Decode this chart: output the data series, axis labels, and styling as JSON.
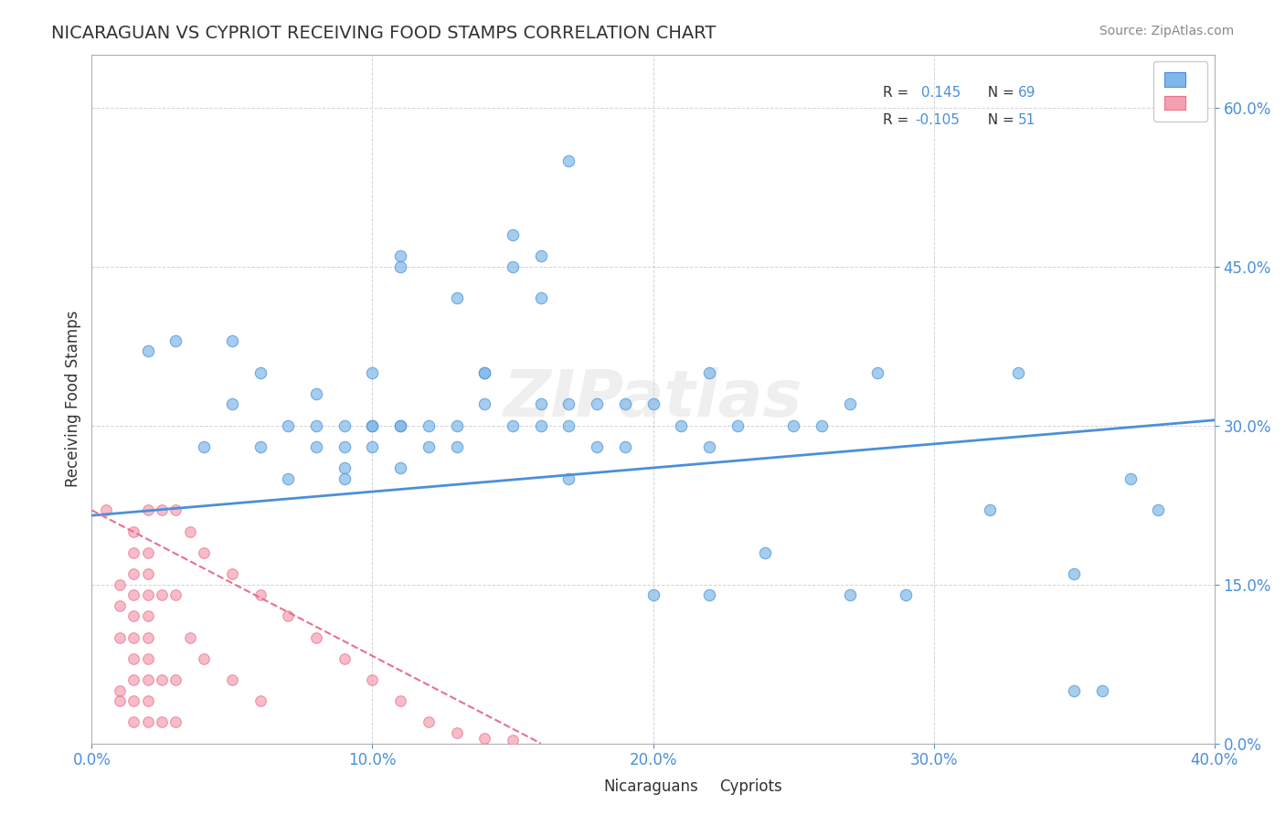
{
  "title": "NICARAGUAN VS CYPRIOT RECEIVING FOOD STAMPS CORRELATION CHART",
  "source": "Source: ZipAtlas.com",
  "xlabel_ticks": [
    "0.0%",
    "10.0%",
    "20.0%",
    "30.0%",
    "40.0%"
  ],
  "ylabel_ticks": [
    "0.0%",
    "15.0%",
    "30.0%",
    "45.0%",
    "60.0%"
  ],
  "xlim": [
    0.0,
    0.4
  ],
  "ylim": [
    0.0,
    0.65
  ],
  "watermark": "ZIPatlas",
  "legend_blue_r": "0.145",
  "legend_blue_n": "69",
  "legend_pink_r": "-0.105",
  "legend_pink_n": "51",
  "legend_label_blue": "Nicaraguans",
  "legend_label_pink": "Cypriots",
  "blue_color": "#7EB8E8",
  "pink_color": "#F4A0B0",
  "blue_line_color": "#4A90D9",
  "pink_line_color": "#E87090",
  "blue_scatter": [
    [
      0.02,
      0.37
    ],
    [
      0.03,
      0.38
    ],
    [
      0.04,
      0.28
    ],
    [
      0.05,
      0.32
    ],
    [
      0.05,
      0.38
    ],
    [
      0.06,
      0.35
    ],
    [
      0.06,
      0.28
    ],
    [
      0.07,
      0.3
    ],
    [
      0.07,
      0.25
    ],
    [
      0.08,
      0.3
    ],
    [
      0.08,
      0.28
    ],
    [
      0.08,
      0.33
    ],
    [
      0.09,
      0.28
    ],
    [
      0.09,
      0.26
    ],
    [
      0.09,
      0.3
    ],
    [
      0.09,
      0.25
    ],
    [
      0.1,
      0.3
    ],
    [
      0.1,
      0.28
    ],
    [
      0.1,
      0.35
    ],
    [
      0.1,
      0.3
    ],
    [
      0.11,
      0.3
    ],
    [
      0.11,
      0.26
    ],
    [
      0.11,
      0.3
    ],
    [
      0.11,
      0.45
    ],
    [
      0.11,
      0.46
    ],
    [
      0.12,
      0.3
    ],
    [
      0.12,
      0.28
    ],
    [
      0.13,
      0.42
    ],
    [
      0.13,
      0.28
    ],
    [
      0.13,
      0.3
    ],
    [
      0.14,
      0.35
    ],
    [
      0.14,
      0.32
    ],
    [
      0.14,
      0.35
    ],
    [
      0.15,
      0.48
    ],
    [
      0.15,
      0.45
    ],
    [
      0.15,
      0.3
    ],
    [
      0.16,
      0.46
    ],
    [
      0.16,
      0.42
    ],
    [
      0.16,
      0.3
    ],
    [
      0.16,
      0.32
    ],
    [
      0.17,
      0.32
    ],
    [
      0.17,
      0.3
    ],
    [
      0.17,
      0.25
    ],
    [
      0.17,
      0.55
    ],
    [
      0.18,
      0.28
    ],
    [
      0.18,
      0.32
    ],
    [
      0.19,
      0.32
    ],
    [
      0.19,
      0.28
    ],
    [
      0.2,
      0.32
    ],
    [
      0.2,
      0.14
    ],
    [
      0.21,
      0.3
    ],
    [
      0.22,
      0.35
    ],
    [
      0.22,
      0.28
    ],
    [
      0.22,
      0.14
    ],
    [
      0.23,
      0.3
    ],
    [
      0.24,
      0.18
    ],
    [
      0.25,
      0.3
    ],
    [
      0.26,
      0.3
    ],
    [
      0.27,
      0.32
    ],
    [
      0.27,
      0.14
    ],
    [
      0.28,
      0.35
    ],
    [
      0.29,
      0.14
    ],
    [
      0.32,
      0.22
    ],
    [
      0.33,
      0.35
    ],
    [
      0.35,
      0.05
    ],
    [
      0.35,
      0.16
    ],
    [
      0.36,
      0.05
    ],
    [
      0.37,
      0.25
    ],
    [
      0.38,
      0.22
    ]
  ],
  "pink_scatter": [
    [
      0.005,
      0.22
    ],
    [
      0.01,
      0.15
    ],
    [
      0.01,
      0.13
    ],
    [
      0.01,
      0.1
    ],
    [
      0.01,
      0.05
    ],
    [
      0.01,
      0.04
    ],
    [
      0.015,
      0.2
    ],
    [
      0.015,
      0.18
    ],
    [
      0.015,
      0.16
    ],
    [
      0.015,
      0.14
    ],
    [
      0.015,
      0.12
    ],
    [
      0.015,
      0.1
    ],
    [
      0.015,
      0.08
    ],
    [
      0.015,
      0.06
    ],
    [
      0.015,
      0.04
    ],
    [
      0.015,
      0.02
    ],
    [
      0.02,
      0.22
    ],
    [
      0.02,
      0.18
    ],
    [
      0.02,
      0.16
    ],
    [
      0.02,
      0.14
    ],
    [
      0.02,
      0.12
    ],
    [
      0.02,
      0.1
    ],
    [
      0.02,
      0.08
    ],
    [
      0.02,
      0.06
    ],
    [
      0.02,
      0.04
    ],
    [
      0.02,
      0.02
    ],
    [
      0.025,
      0.22
    ],
    [
      0.025,
      0.14
    ],
    [
      0.025,
      0.06
    ],
    [
      0.025,
      0.02
    ],
    [
      0.03,
      0.22
    ],
    [
      0.03,
      0.14
    ],
    [
      0.03,
      0.06
    ],
    [
      0.03,
      0.02
    ],
    [
      0.035,
      0.2
    ],
    [
      0.035,
      0.1
    ],
    [
      0.04,
      0.18
    ],
    [
      0.04,
      0.08
    ],
    [
      0.05,
      0.16
    ],
    [
      0.05,
      0.06
    ],
    [
      0.06,
      0.14
    ],
    [
      0.06,
      0.04
    ],
    [
      0.07,
      0.12
    ],
    [
      0.08,
      0.1
    ],
    [
      0.09,
      0.08
    ],
    [
      0.1,
      0.06
    ],
    [
      0.11,
      0.04
    ],
    [
      0.12,
      0.02
    ],
    [
      0.13,
      0.01
    ],
    [
      0.14,
      0.005
    ],
    [
      0.15,
      0.003
    ]
  ]
}
